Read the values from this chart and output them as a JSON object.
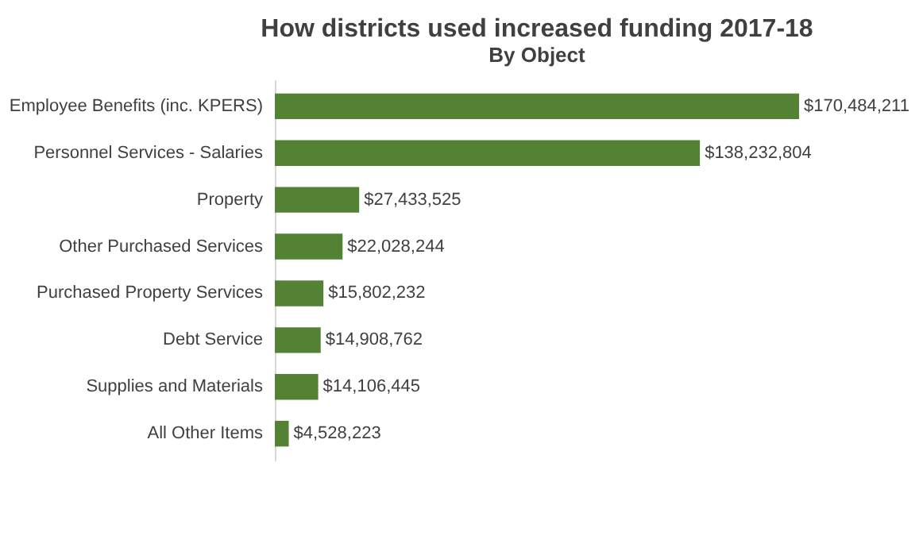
{
  "chart_data": {
    "type": "bar",
    "orientation": "horizontal",
    "title": "How districts used increased funding 2017-18",
    "subtitle": "By Object",
    "categories": [
      "Employee Benefits (inc. KPERS)",
      "Personnel Services - Salaries",
      "Property",
      "Other Purchased Services",
      "Purchased Property Services",
      "Debt Service",
      "Supplies and Materials",
      "All Other Items"
    ],
    "values": [
      170484211,
      138232804,
      27433525,
      22028244,
      15802232,
      14908762,
      14106445,
      4528223
    ],
    "value_labels": [
      "$170,484,211",
      "$138,232,804",
      "$27,433,525",
      "$22,028,244",
      "$15,802,232",
      "$14,908,762",
      "$14,106,445",
      "$4,528,223"
    ],
    "color": "#548235",
    "grid": false,
    "tick_labels": "y"
  }
}
